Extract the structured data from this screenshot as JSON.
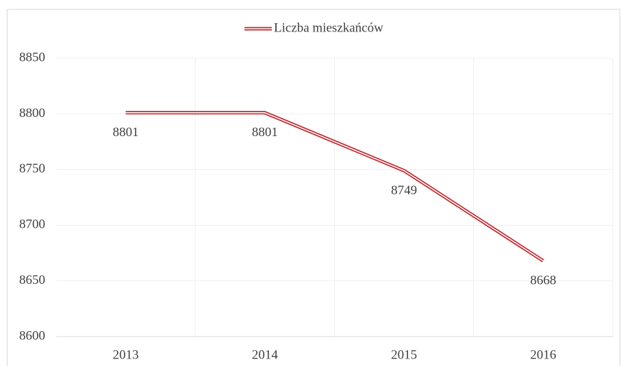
{
  "chart_data": {
    "type": "line",
    "categories": [
      "2013",
      "2014",
      "2015",
      "2016"
    ],
    "series": [
      {
        "name": "Liczba mieszkańców",
        "color": "#c0272d",
        "values": [
          8801,
          8801,
          8749,
          8668
        ]
      }
    ],
    "ylim": [
      8600,
      8850
    ],
    "yticks": [
      8600,
      8650,
      8700,
      8750,
      8800,
      8850
    ],
    "grid": true,
    "legend": "top"
  }
}
